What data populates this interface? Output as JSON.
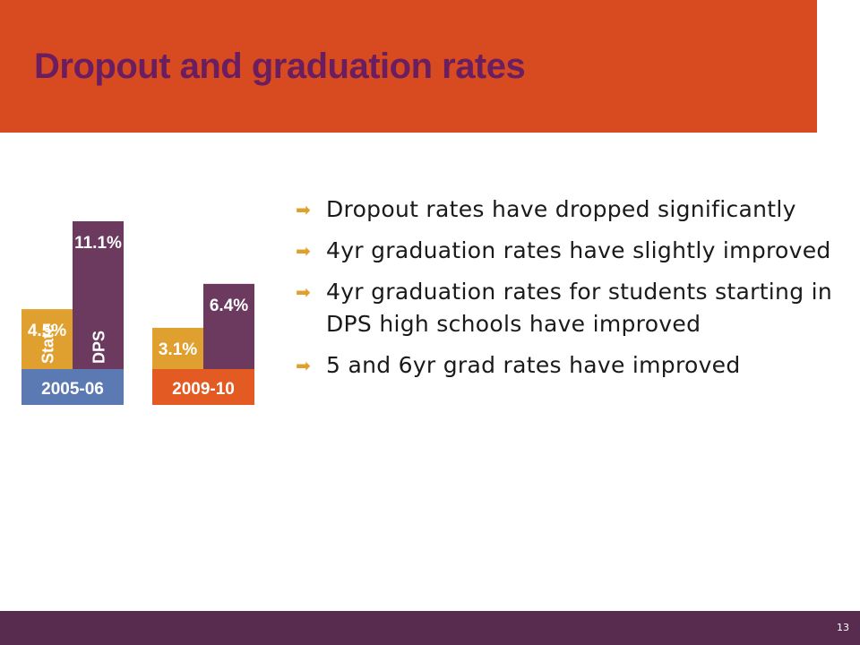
{
  "title": "Dropout and graduation rates",
  "colors": {
    "header": "#d84a20",
    "title": "#6b1e5f",
    "state_bar": "#e0a030",
    "dps_bar": "#6b3a5e",
    "label_2005": "#5b7ab3",
    "label_2009": "#e35a22",
    "footer": "#582c4f",
    "bullet_arrow": "#e0a030"
  },
  "chart_data": {
    "type": "bar",
    "categories": [
      "2005-06",
      "2009-10"
    ],
    "series": [
      {
        "name": "State",
        "values": [
          4.5,
          3.1
        ],
        "labels": [
          "4.5%",
          "3.1%"
        ]
      },
      {
        "name": "DPS",
        "values": [
          11.1,
          6.4
        ],
        "labels": [
          "11.1%",
          "6.4%"
        ]
      }
    ],
    "ylim": [
      0,
      11.1
    ],
    "grid": false
  },
  "bullets": [
    "Dropout rates have dropped significantly",
    "4yr graduation rates have slightly improved",
    "4yr graduation rates for students starting in DPS high schools have improved",
    "5 and 6yr grad rates have improved"
  ],
  "bullet_icon": "right-arrow-icon",
  "page_number": "13"
}
